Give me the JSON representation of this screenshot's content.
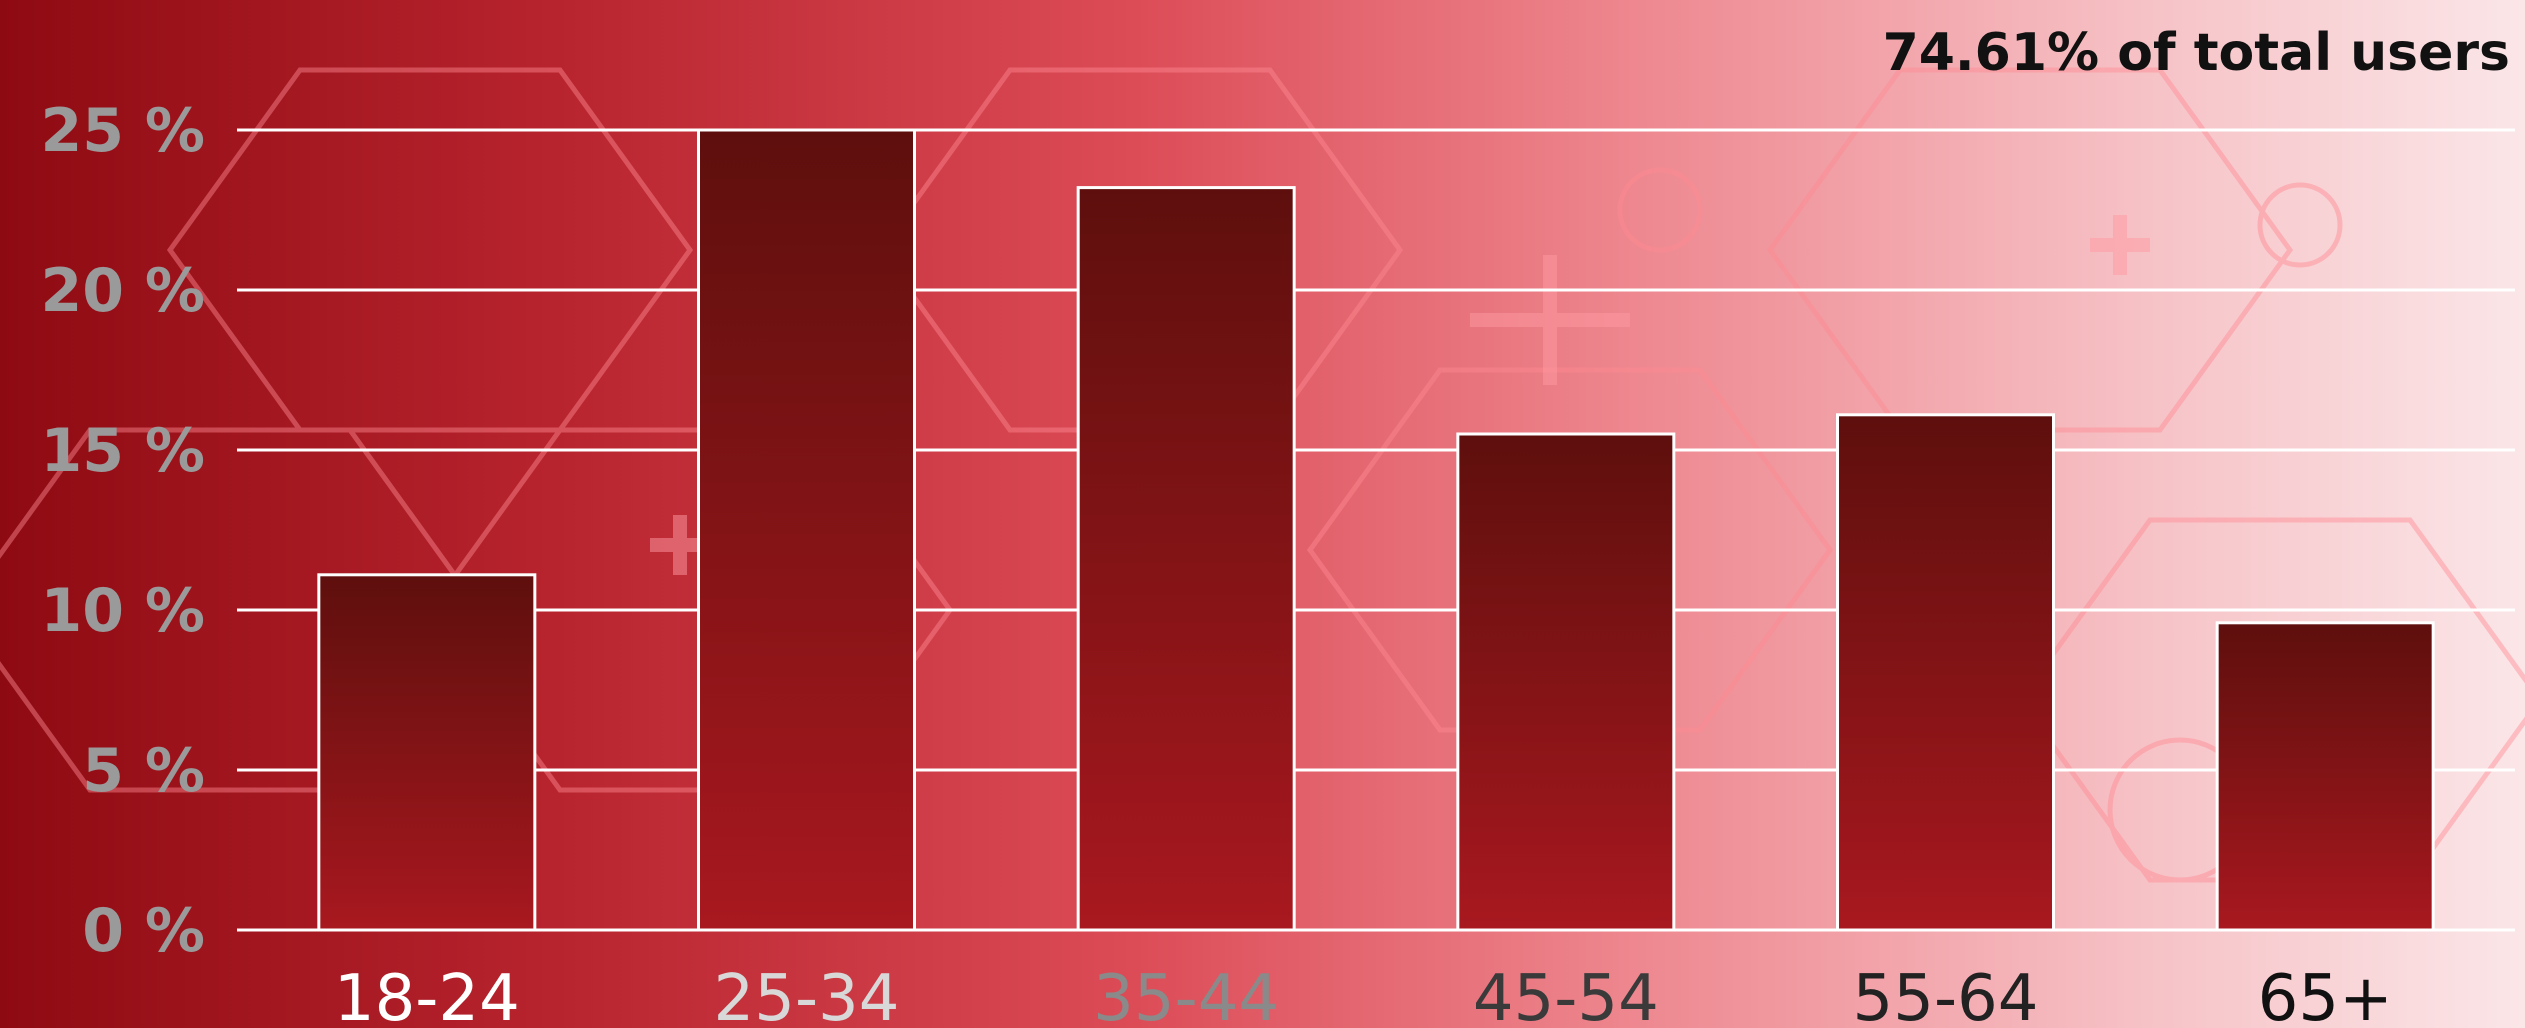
{
  "chart_data": {
    "type": "bar",
    "annotation": "74.61% of total users",
    "categories": [
      "18-24",
      "25-34",
      "35-44",
      "45-54",
      "55-64",
      "65+"
    ],
    "values": [
      11.1,
      25.0,
      23.2,
      15.5,
      16.1,
      9.6
    ],
    "ylim": [
      0,
      25
    ],
    "yticks": [
      "0 %",
      "5 %",
      "10 %",
      "15 %",
      "20 %",
      "25 %"
    ],
    "grid": true,
    "colors": {
      "bar_top": "#5e0f0d",
      "bar_bottom": "#a8181f",
      "bar_stroke": "#ffffff",
      "gridline": "#ffffff",
      "ytick_text": "#9a9a9a",
      "xtick_text": [
        "#ffffff",
        "#d8d8d8",
        "#8a8a8a",
        "#3a3a3a",
        "#222222",
        "#111111"
      ]
    }
  }
}
